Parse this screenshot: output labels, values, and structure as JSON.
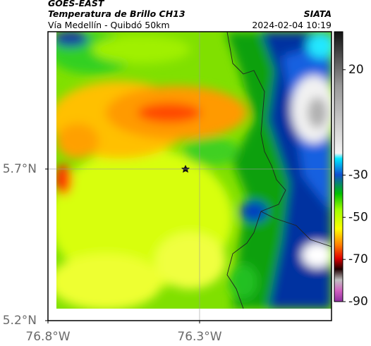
{
  "header": {
    "satellite": "GOES-EAST",
    "product": "Temperatura de Brillo CH13",
    "region": "Vía Medellín - Quibdó 50km",
    "source": "SIATA",
    "timestamp": "2024-02-04 10:19"
  },
  "map": {
    "xlim": [
      -76.8,
      -75.865
    ],
    "ylim": [
      5.2,
      6.153
    ],
    "xticks": [
      {
        "value": -76.8,
        "label": "76.8°W"
      },
      {
        "value": -76.3,
        "label": "76.3°W"
      }
    ],
    "yticks": [
      {
        "value": 5.2,
        "label": "5.2°N"
      },
      {
        "value": 5.7,
        "label": "5.7°N"
      }
    ],
    "grid": true
  },
  "colorbar": {
    "lim": [
      -90,
      38
    ],
    "ticks": [
      20,
      -30,
      -50,
      -70,
      -90
    ]
  }
}
